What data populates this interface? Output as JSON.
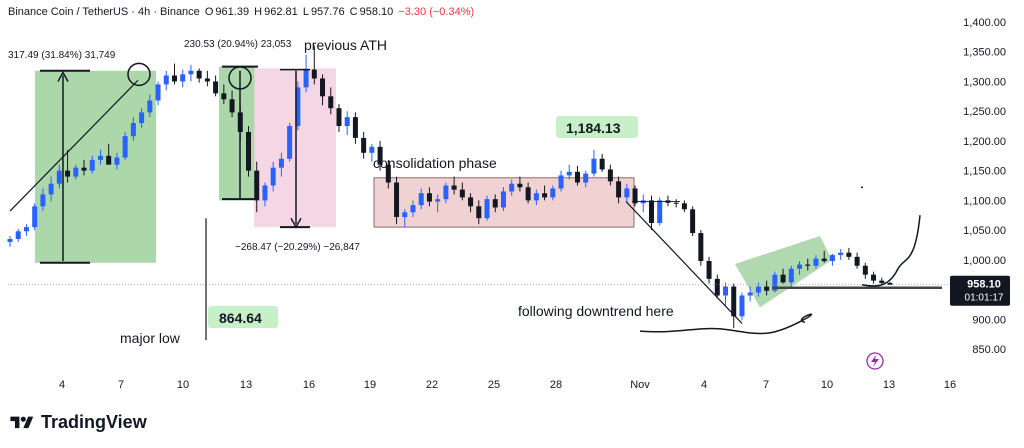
{
  "header": {
    "symbol": "Binance Coin / TetherUS · 4h · Binance",
    "open_label": "O",
    "open": "961.39",
    "high_label": "H",
    "high": "962.81",
    "low_label": "L",
    "low": "957.76",
    "close_label": "C",
    "close": "958.10",
    "change": "−3.30 (−0.34%)"
  },
  "brand": {
    "name": "TradingView"
  },
  "price_tag": {
    "price": "958.10",
    "countdown": "01:01:17",
    "color": "#131722"
  },
  "colors": {
    "up": "#2962ff",
    "down": "#131722",
    "green_box": "#8fc98f",
    "pink_box": "#f2cfe0",
    "consolidation_box": "#ecc7c7",
    "label_bg": "#c8f0c8"
  },
  "chart_data": {
    "type": "candlestick",
    "title": "",
    "xlabel": "",
    "ylabel": "",
    "ylim": [
      820,
      1420
    ],
    "y_ticks": [
      "1,400.00",
      "1,350.00",
      "1,300.00",
      "1,250.00",
      "1,200.00",
      "1,150.00",
      "1,100.00",
      "1,050.00",
      "1,000.00",
      "900.00",
      "850.00"
    ],
    "y_tick_values": [
      1400,
      1350,
      1300,
      1250,
      1200,
      1150,
      1100,
      1050,
      1000,
      900,
      850
    ],
    "x_ticks": [
      "4",
      "7",
      "10",
      "13",
      "16",
      "19",
      "22",
      "25",
      "28",
      "Nov",
      "4",
      "7",
      "10",
      "13",
      "16"
    ],
    "grid": false,
    "series": [
      {
        "values": [
          [
            1030,
            1040,
            1022,
            1035
          ],
          [
            1035,
            1052,
            1030,
            1048
          ],
          [
            1048,
            1060,
            1040,
            1055
          ],
          [
            1055,
            1095,
            1050,
            1090
          ],
          [
            1090,
            1120,
            1082,
            1110
          ],
          [
            1110,
            1140,
            1098,
            1128
          ],
          [
            1128,
            1160,
            1120,
            1150
          ],
          [
            1150,
            1185,
            1130,
            1140
          ],
          [
            1140,
            1160,
            1135,
            1155
          ],
          [
            1155,
            1168,
            1142,
            1150
          ],
          [
            1150,
            1175,
            1145,
            1168
          ],
          [
            1168,
            1185,
            1160,
            1175
          ],
          [
            1175,
            1195,
            1165,
            1160
          ],
          [
            1160,
            1180,
            1152,
            1172
          ],
          [
            1172,
            1215,
            1168,
            1208
          ],
          [
            1208,
            1240,
            1200,
            1230
          ],
          [
            1230,
            1255,
            1222,
            1248
          ],
          [
            1248,
            1278,
            1240,
            1268
          ],
          [
            1268,
            1300,
            1260,
            1295
          ],
          [
            1295,
            1318,
            1285,
            1310
          ],
          [
            1310,
            1330,
            1295,
            1300
          ],
          [
            1300,
            1320,
            1290,
            1312
          ],
          [
            1312,
            1328,
            1300,
            1318
          ],
          [
            1318,
            1322,
            1298,
            1305
          ],
          [
            1305,
            1318,
            1292,
            1300
          ],
          [
            1300,
            1310,
            1275,
            1280
          ],
          [
            1280,
            1295,
            1262,
            1270
          ],
          [
            1270,
            1285,
            1240,
            1248
          ],
          [
            1248,
            1260,
            1200,
            1215
          ],
          [
            1215,
            1225,
            1140,
            1150
          ],
          [
            1150,
            1165,
            1080,
            1100
          ],
          [
            1100,
            1130,
            1090,
            1125
          ],
          [
            1125,
            1165,
            1115,
            1155
          ],
          [
            1155,
            1180,
            1140,
            1170
          ],
          [
            1170,
            1230,
            1165,
            1225
          ],
          [
            1225,
            1300,
            1218,
            1290
          ],
          [
            1290,
            1345,
            1282,
            1320
          ],
          [
            1320,
            1360,
            1295,
            1305
          ],
          [
            1305,
            1312,
            1260,
            1275
          ],
          [
            1275,
            1290,
            1245,
            1255
          ],
          [
            1255,
            1262,
            1215,
            1225
          ],
          [
            1225,
            1250,
            1210,
            1240
          ],
          [
            1240,
            1248,
            1195,
            1205
          ],
          [
            1205,
            1215,
            1170,
            1180
          ],
          [
            1180,
            1195,
            1165,
            1190
          ],
          [
            1190,
            1200,
            1150,
            1160
          ],
          [
            1160,
            1168,
            1120,
            1130
          ],
          [
            1130,
            1140,
            1060,
            1072
          ],
          [
            1072,
            1085,
            1055,
            1080
          ],
          [
            1080,
            1100,
            1072,
            1092
          ],
          [
            1092,
            1120,
            1085,
            1112
          ],
          [
            1112,
            1122,
            1090,
            1098
          ],
          [
            1098,
            1110,
            1080,
            1102
          ],
          [
            1102,
            1130,
            1095,
            1125
          ],
          [
            1125,
            1140,
            1110,
            1118
          ],
          [
            1118,
            1130,
            1100,
            1105
          ],
          [
            1105,
            1112,
            1080,
            1090
          ],
          [
            1090,
            1100,
            1060,
            1070
          ],
          [
            1070,
            1108,
            1066,
            1102
          ],
          [
            1102,
            1110,
            1080,
            1088
          ],
          [
            1088,
            1122,
            1082,
            1115
          ],
          [
            1115,
            1135,
            1108,
            1128
          ],
          [
            1128,
            1140,
            1115,
            1122
          ],
          [
            1122,
            1130,
            1095,
            1100
          ],
          [
            1100,
            1118,
            1092,
            1112
          ],
          [
            1112,
            1125,
            1100,
            1105
          ],
          [
            1105,
            1125,
            1100,
            1120
          ],
          [
            1120,
            1150,
            1115,
            1142
          ],
          [
            1142,
            1160,
            1135,
            1148
          ],
          [
            1148,
            1158,
            1125,
            1130
          ],
          [
            1130,
            1150,
            1122,
            1145
          ],
          [
            1145,
            1185,
            1140,
            1170
          ],
          [
            1170,
            1178,
            1148,
            1152
          ],
          [
            1152,
            1160,
            1125,
            1132
          ],
          [
            1132,
            1140,
            1095,
            1105
          ],
          [
            1105,
            1128,
            1098,
            1120
          ],
          [
            1120,
            1125,
            1090,
            1095
          ],
          [
            1095,
            1110,
            1080,
            1100
          ],
          [
            1100,
            1108,
            1050,
            1062
          ],
          [
            1062,
            1105,
            1058,
            1100
          ],
          [
            1100,
            1108,
            1090,
            1096
          ],
          [
            1096,
            1102,
            1088,
            1095
          ],
          [
            1095,
            1100,
            1080,
            1085
          ],
          [
            1085,
            1090,
            1040,
            1045
          ],
          [
            1045,
            1050,
            990,
            998
          ],
          [
            998,
            1005,
            960,
            968
          ],
          [
            968,
            975,
            935,
            940
          ],
          [
            940,
            962,
            922,
            955
          ],
          [
            955,
            960,
            885,
            905
          ],
          [
            905,
            945,
            898,
            940
          ],
          [
            940,
            955,
            930,
            945
          ],
          [
            945,
            962,
            938,
            955
          ],
          [
            955,
            965,
            940,
            948
          ],
          [
            948,
            980,
            945,
            975
          ],
          [
            975,
            985,
            960,
            962
          ],
          [
            962,
            990,
            955,
            985
          ],
          [
            985,
            998,
            975,
            992
          ],
          [
            992,
            1002,
            982,
            990
          ],
          [
            990,
            1008,
            985,
            1002
          ],
          [
            1002,
            1015,
            995,
            998
          ],
          [
            998,
            1010,
            990,
            1008
          ],
          [
            1008,
            1018,
            1000,
            1012
          ],
          [
            1012,
            1020,
            1000,
            1005
          ],
          [
            1005,
            1012,
            985,
            990
          ],
          [
            990,
            995,
            968,
            975
          ],
          [
            975,
            980,
            960,
            965
          ],
          [
            965,
            970,
            958,
            961
          ],
          [
            961,
            962.81,
            957.76,
            958.1
          ]
        ]
      }
    ],
    "series_format": "open,high,low,close (4h candles)",
    "annotations": {
      "range1": "317.49 (31.84%) 31,749",
      "range2": "230.53 (20.94%) 23,053",
      "range3": "−268.47 (−20.29%) −26,847",
      "previous_ath": "previous ATH",
      "consolidation": "consolidation phase",
      "high_label": "1,184.13",
      "low_label": "864.64",
      "major_low": "major low",
      "downtrend": "following downtrend here"
    }
  }
}
